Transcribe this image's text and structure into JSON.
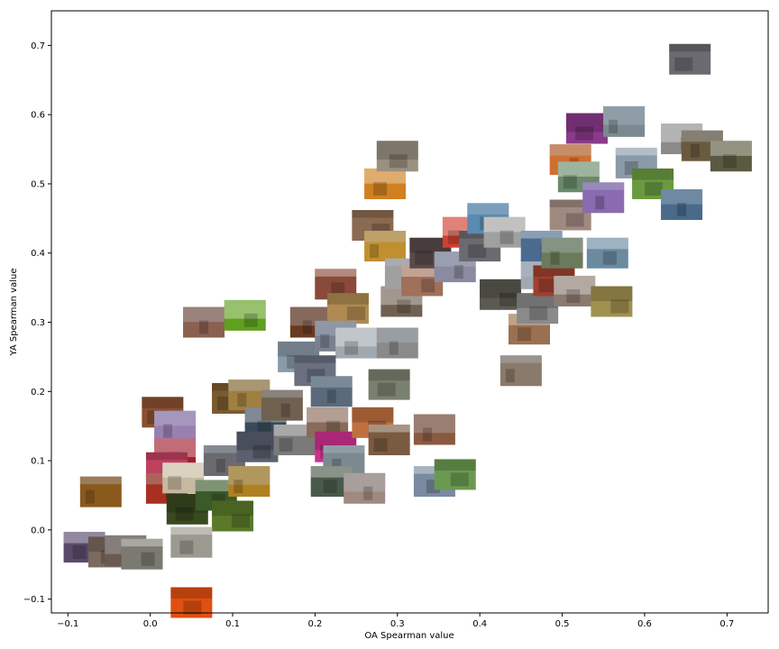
{
  "chart_data": {
    "type": "scatter",
    "title": "",
    "xlabel": "OA Spearman value",
    "ylabel": "YA Spearman value",
    "xlim": [
      -0.12,
      0.75
    ],
    "ylim": [
      -0.12,
      0.75
    ],
    "xticks": [
      -0.1,
      0.0,
      0.1,
      0.2,
      0.3,
      0.4,
      0.5,
      0.6,
      0.7
    ],
    "yticks": [
      -0.1,
      0.0,
      0.1,
      0.2,
      0.3,
      0.4,
      0.5,
      0.6,
      0.7
    ],
    "xtick_labels": [
      "−0.1",
      "0.0",
      "0.1",
      "0.2",
      "0.3",
      "0.4",
      "0.5",
      "0.6",
      "0.7"
    ],
    "ytick_labels": [
      "−0.1",
      "0.0",
      "0.1",
      "0.2",
      "0.3",
      "0.4",
      "0.5",
      "0.6",
      "0.7"
    ],
    "grid": false,
    "marker": "image thumbnail",
    "points": [
      {
        "x": -0.06,
        "y": 0.055,
        "color": "#8a5a1c"
      },
      {
        "x": -0.08,
        "y": -0.025,
        "color": "#5a4a6a"
      },
      {
        "x": -0.05,
        "y": -0.032,
        "color": "#7a6a60"
      },
      {
        "x": -0.03,
        "y": -0.03,
        "color": "#6a5a50"
      },
      {
        "x": -0.01,
        "y": -0.035,
        "color": "#7a7a70"
      },
      {
        "x": 0.015,
        "y": 0.17,
        "color": "#8a5030"
      },
      {
        "x": 0.03,
        "y": 0.15,
        "color": "#9a80b0"
      },
      {
        "x": 0.03,
        "y": 0.11,
        "color": "#a02030"
      },
      {
        "x": 0.02,
        "y": 0.09,
        "color": "#c04060"
      },
      {
        "x": 0.02,
        "y": 0.06,
        "color": "#a83020"
      },
      {
        "x": 0.04,
        "y": 0.075,
        "color": "#c8b8a0"
      },
      {
        "x": 0.045,
        "y": 0.03,
        "color": "#3a4a20"
      },
      {
        "x": 0.09,
        "y": 0.1,
        "color": "#6a6a70"
      },
      {
        "x": 0.08,
        "y": 0.05,
        "color": "#3a5a2a"
      },
      {
        "x": 0.1,
        "y": 0.02,
        "color": "#5a7a2a"
      },
      {
        "x": 0.12,
        "y": 0.07,
        "color": "#b08020"
      },
      {
        "x": 0.05,
        "y": -0.018,
        "color": "#9a9a90"
      },
      {
        "x": 0.05,
        "y": -0.105,
        "color": "#e05010"
      },
      {
        "x": 0.065,
        "y": 0.3,
        "color": "#8a6050"
      },
      {
        "x": 0.115,
        "y": 0.31,
        "color": "#60a020"
      },
      {
        "x": 0.1,
        "y": 0.19,
        "color": "#7a5a30"
      },
      {
        "x": 0.12,
        "y": 0.195,
        "color": "#a08040"
      },
      {
        "x": 0.14,
        "y": 0.155,
        "color": "#3a4a5a"
      },
      {
        "x": 0.13,
        "y": 0.12,
        "color": "#5a6070"
      },
      {
        "x": 0.16,
        "y": 0.18,
        "color": "#706050"
      },
      {
        "x": 0.175,
        "y": 0.13,
        "color": "#7a7a7a"
      },
      {
        "x": 0.18,
        "y": 0.25,
        "color": "#8a9aa8"
      },
      {
        "x": 0.195,
        "y": 0.3,
        "color": "#6a3a20"
      },
      {
        "x": 0.225,
        "y": 0.355,
        "color": "#8a4a3a"
      },
      {
        "x": 0.24,
        "y": 0.32,
        "color": "#b08a50"
      },
      {
        "x": 0.225,
        "y": 0.28,
        "color": "#7a8090"
      },
      {
        "x": 0.25,
        "y": 0.27,
        "color": "#a0a8b0"
      },
      {
        "x": 0.2,
        "y": 0.23,
        "color": "#6a7080"
      },
      {
        "x": 0.22,
        "y": 0.2,
        "color": "#5a6a7a"
      },
      {
        "x": 0.215,
        "y": 0.155,
        "color": "#8a6a5a"
      },
      {
        "x": 0.225,
        "y": 0.12,
        "color": "#d03090"
      },
      {
        "x": 0.235,
        "y": 0.1,
        "color": "#7a8a90"
      },
      {
        "x": 0.22,
        "y": 0.07,
        "color": "#4a5a4a"
      },
      {
        "x": 0.27,
        "y": 0.155,
        "color": "#c07040"
      },
      {
        "x": 0.26,
        "y": 0.06,
        "color": "#a08a80"
      },
      {
        "x": 0.29,
        "y": 0.13,
        "color": "#7a5a40"
      },
      {
        "x": 0.29,
        "y": 0.21,
        "color": "#7a8070"
      },
      {
        "x": 0.3,
        "y": 0.27,
        "color": "#8a8a8a"
      },
      {
        "x": 0.305,
        "y": 0.33,
        "color": "#706050"
      },
      {
        "x": 0.27,
        "y": 0.44,
        "color": "#8a6a50"
      },
      {
        "x": 0.285,
        "y": 0.41,
        "color": "#c09030"
      },
      {
        "x": 0.285,
        "y": 0.5,
        "color": "#d08020"
      },
      {
        "x": 0.3,
        "y": 0.54,
        "color": "#9a9080"
      },
      {
        "x": 0.31,
        "y": 0.37,
        "color": "#a0a0a0"
      },
      {
        "x": 0.33,
        "y": 0.36,
        "color": "#a0705a"
      },
      {
        "x": 0.34,
        "y": 0.4,
        "color": "#5a4a4a"
      },
      {
        "x": 0.345,
        "y": 0.145,
        "color": "#8a5a40"
      },
      {
        "x": 0.345,
        "y": 0.07,
        "color": "#7a8aa0"
      },
      {
        "x": 0.37,
        "y": 0.08,
        "color": "#6a9a50"
      },
      {
        "x": 0.37,
        "y": 0.38,
        "color": "#8a8aa0"
      },
      {
        "x": 0.38,
        "y": 0.43,
        "color": "#d04030"
      },
      {
        "x": 0.4,
        "y": 0.41,
        "color": "#6a6a70"
      },
      {
        "x": 0.41,
        "y": 0.45,
        "color": "#5a8ab0"
      },
      {
        "x": 0.43,
        "y": 0.43,
        "color": "#a0a0a0"
      },
      {
        "x": 0.425,
        "y": 0.34,
        "color": "#5a5a50"
      },
      {
        "x": 0.45,
        "y": 0.23,
        "color": "#8a7a6a"
      },
      {
        "x": 0.46,
        "y": 0.29,
        "color": "#9a7050"
      },
      {
        "x": 0.47,
        "y": 0.32,
        "color": "#8a8a8a"
      },
      {
        "x": 0.475,
        "y": 0.37,
        "color": "#a0a8b0"
      },
      {
        "x": 0.475,
        "y": 0.41,
        "color": "#4a6a90"
      },
      {
        "x": 0.49,
        "y": 0.36,
        "color": "#a04030"
      },
      {
        "x": 0.5,
        "y": 0.4,
        "color": "#6a7a5a"
      },
      {
        "x": 0.515,
        "y": 0.345,
        "color": "#8a7a70"
      },
      {
        "x": 0.51,
        "y": 0.455,
        "color": "#a08a80"
      },
      {
        "x": 0.51,
        "y": 0.535,
        "color": "#d07030"
      },
      {
        "x": 0.52,
        "y": 0.51,
        "color": "#6a8a6a"
      },
      {
        "x": 0.53,
        "y": 0.58,
        "color": "#8a3a8a"
      },
      {
        "x": 0.55,
        "y": 0.48,
        "color": "#8a6ab0"
      },
      {
        "x": 0.555,
        "y": 0.4,
        "color": "#6a8aa0"
      },
      {
        "x": 0.56,
        "y": 0.33,
        "color": "#a09050"
      },
      {
        "x": 0.575,
        "y": 0.59,
        "color": "#7a8a90"
      },
      {
        "x": 0.59,
        "y": 0.53,
        "color": "#8a9aa8"
      },
      {
        "x": 0.61,
        "y": 0.5,
        "color": "#6a9a40"
      },
      {
        "x": 0.645,
        "y": 0.47,
        "color": "#4a6a8a"
      },
      {
        "x": 0.645,
        "y": 0.565,
        "color": "#8a8a8a"
      },
      {
        "x": 0.655,
        "y": 0.68,
        "color": "#6a6a70"
      },
      {
        "x": 0.67,
        "y": 0.555,
        "color": "#6a5a40"
      },
      {
        "x": 0.705,
        "y": 0.54,
        "color": "#5a5a40"
      }
    ]
  }
}
